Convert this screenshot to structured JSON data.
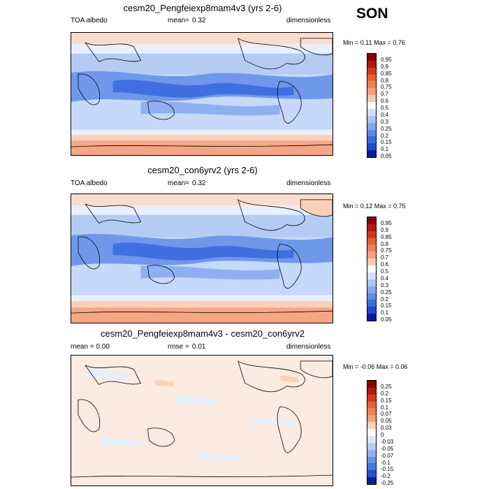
{
  "season": "SON",
  "panels": [
    {
      "title": "cesm20_Pengfeiexp8mam4v3 (yrs 2-6)",
      "left_label": "TOA albedo",
      "mean_label": "mean=",
      "mean_value": "0.32",
      "units": "dimensionless",
      "minmax": "Min =  0.11 Max =  0.76"
    },
    {
      "title": "cesm20_con6yrv2 (yrs 2-6)",
      "left_label": "TOA albedo",
      "mean_label": "mean=",
      "mean_value": "0.32",
      "units": "dimensionless",
      "minmax": "Min =  0.12 Max =  0.75"
    },
    {
      "title": "cesm20_Pengfeiexp8mam4v3 - cesm20_con6yrv2",
      "left_label": "mean =  0.00",
      "mean_label": "rmse =",
      "mean_value": "0.01",
      "units": "dimensionless",
      "minmax": "Min =  -0.06 Max =  0.06"
    }
  ],
  "chart_data": [
    {
      "type": "heatmap",
      "title": "cesm20_Pengfeiexp8mam4v3 (yrs 2-6)",
      "variable": "TOA albedo",
      "mean": 0.32,
      "min": 0.11,
      "max": 0.76,
      "units": "dimensionless",
      "colorbar_levels": [
        "0.95",
        "0.9",
        "0.85",
        "0.8",
        "0.75",
        "0.7",
        "0.6",
        "0.5",
        "0.4",
        "0.3",
        "0.25",
        "0.2",
        "0.15",
        "0.1",
        "0.05"
      ]
    },
    {
      "type": "heatmap",
      "title": "cesm20_con6yrv2 (yrs 2-6)",
      "variable": "TOA albedo",
      "mean": 0.32,
      "min": 0.12,
      "max": 0.75,
      "units": "dimensionless",
      "colorbar_levels": [
        "0.95",
        "0.9",
        "0.85",
        "0.8",
        "0.75",
        "0.7",
        "0.6",
        "0.5",
        "0.4",
        "0.3",
        "0.25",
        "0.2",
        "0.15",
        "0.1",
        "0.05"
      ]
    },
    {
      "type": "heatmap",
      "title": "cesm20_Pengfeiexp8mam4v3 - cesm20_con6yrv2",
      "variable": "difference",
      "mean": 0.0,
      "rmse": 0.01,
      "min": -0.06,
      "max": 0.06,
      "units": "dimensionless",
      "colorbar_levels": [
        "0.25",
        "0.2",
        "0.15",
        "0.1",
        "0.07",
        "0.05",
        "0.03",
        "0",
        "-0.03",
        "-0.05",
        "-0.07",
        "-0.1",
        "-0.15",
        "-0.2",
        "-0.25"
      ]
    }
  ],
  "colors": {
    "abs_scale": [
      "#8b0000",
      "#b11a0c",
      "#d33a1c",
      "#e8603a",
      "#f08058",
      "#f4a07c",
      "#f8c8ac",
      "#ffffff",
      "#cfe0fb",
      "#a9c4f4",
      "#82a8ee",
      "#5d8be8",
      "#3a6de0",
      "#1e4ad2",
      "#0a1d9a"
    ],
    "diff_scale": [
      "#8b0000",
      "#b11a0c",
      "#d33a1c",
      "#e8603a",
      "#f08058",
      "#f4a07c",
      "#f9d2bc",
      "#ffffff",
      "#d9e6fc",
      "#b7cdf6",
      "#90b1f0",
      "#6b93ea",
      "#4675e3",
      "#2450d4",
      "#0a1d9a"
    ]
  }
}
